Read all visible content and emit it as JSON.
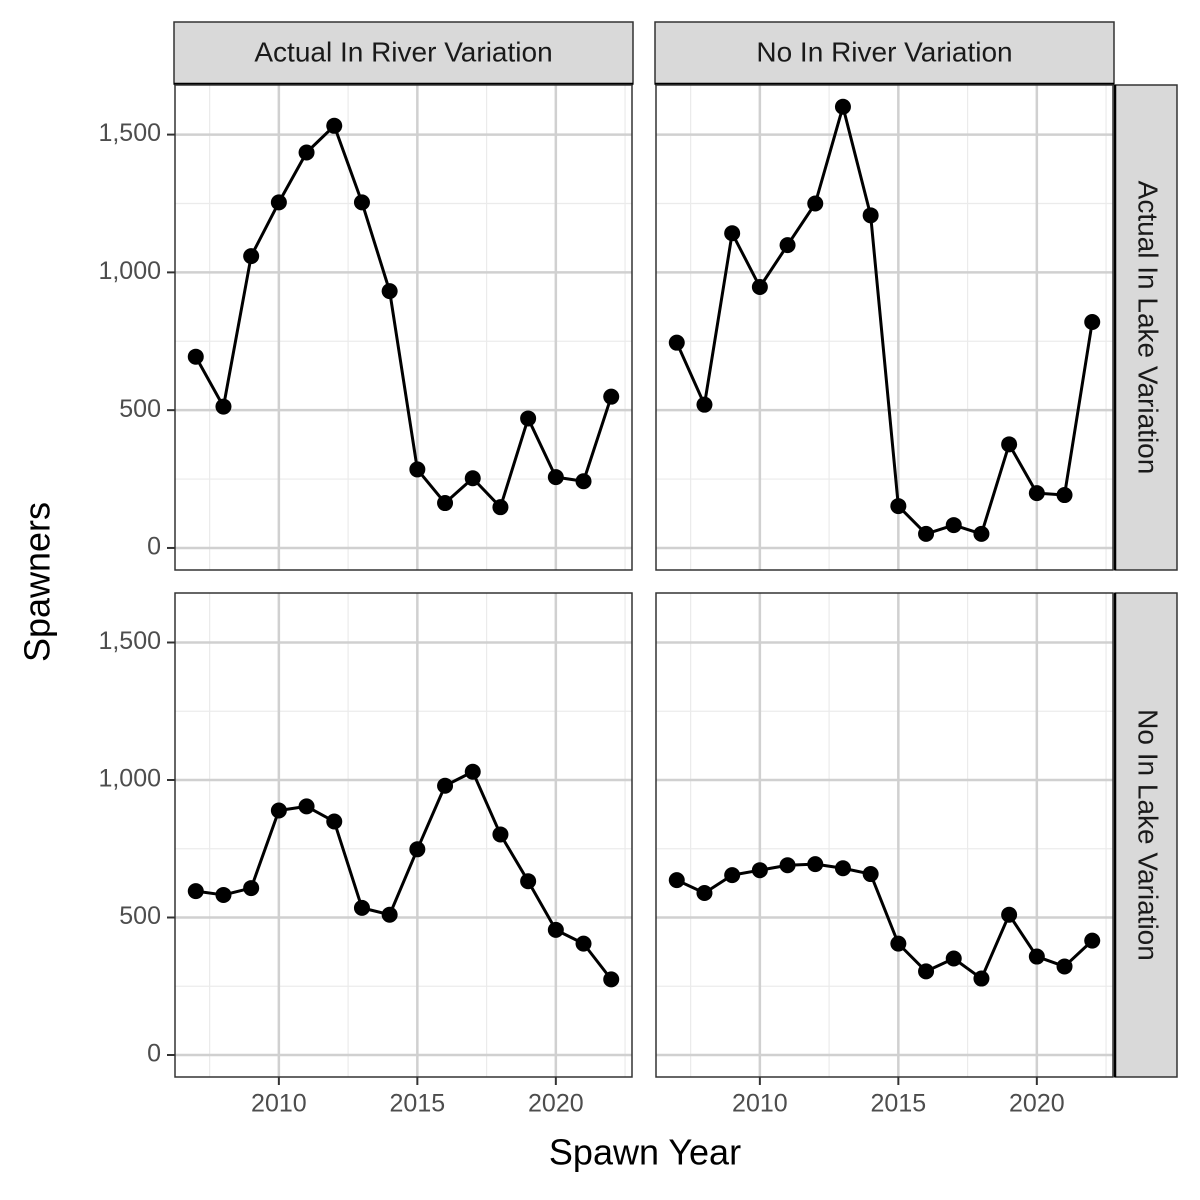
{
  "chart_data": {
    "type": "line",
    "xlabel": "Spawn Year",
    "ylabel": "Spawners",
    "columns": [
      "Actual In River Variation",
      "No In River Variation"
    ],
    "rows": [
      "Actual In Lake Variation",
      "No In Lake Variation"
    ],
    "x": [
      2007,
      2008,
      2009,
      2010,
      2011,
      2012,
      2013,
      2014,
      2015,
      2016,
      2017,
      2018,
      2019,
      2020,
      2021,
      2022
    ],
    "xlim": [
      2006.25,
      2022.75
    ],
    "xticks": [
      2010,
      2015,
      2020
    ],
    "ylim": [
      -80,
      1680
    ],
    "yticks": [
      0,
      500,
      {
        "value": 1000,
        "label": "1,000"
      },
      {
        "value": 1500,
        "label": "1,500"
      }
    ],
    "grid": true,
    "color": "#000000",
    "panels": [
      [
        [
          694,
          513,
          1059,
          1254,
          1435,
          1532,
          1254,
          932,
          285,
          163,
          253,
          148,
          470,
          257,
          242,
          549
        ],
        [
          745,
          520,
          1142,
          947,
          1099,
          1250,
          1601,
          1207,
          152,
          51,
          83,
          51,
          376,
          199,
          192,
          820
        ]
      ],
      [
        [
          596,
          582,
          607,
          889,
          904,
          849,
          535,
          510,
          748,
          979,
          1030,
          802,
          632,
          455,
          405,
          275
        ],
        [
          636,
          589,
          654,
          672,
          690,
          694,
          679,
          658,
          405,
          304,
          351,
          278,
          510,
          358,
          322,
          416
        ]
      ]
    ]
  }
}
